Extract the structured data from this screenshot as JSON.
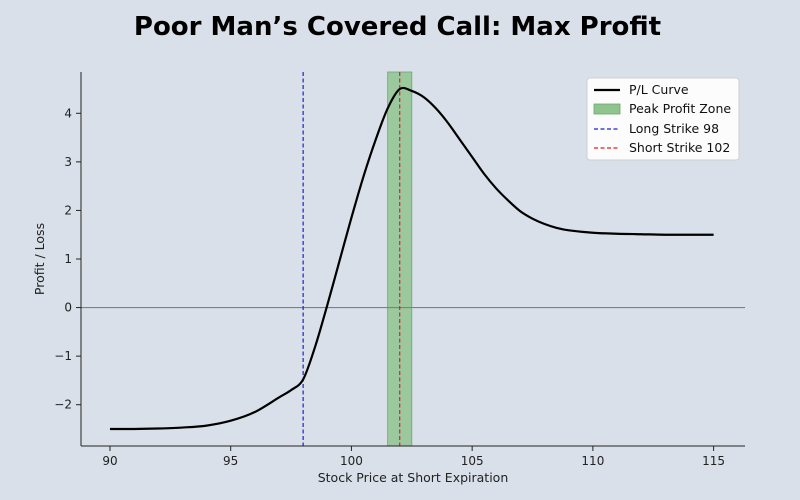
{
  "chart_data": {
    "type": "line",
    "title": "Poor Man’s Covered Call: Max Profit",
    "xlabel": "Stock Price at Short Expiration",
    "ylabel": "Profit / Loss",
    "xlim": [
      88.8,
      116.3
    ],
    "ylim": [
      -2.85,
      4.85
    ],
    "xticks": [
      90,
      95,
      100,
      105,
      110,
      115
    ],
    "yticks": [
      -2,
      -1,
      0,
      1,
      2,
      3,
      4
    ],
    "ytick_labels": [
      "−2",
      "−1",
      "0",
      "1",
      "2",
      "3",
      "4"
    ],
    "grid": false,
    "legend_position": "upper right",
    "series": [
      {
        "name": "P/L Curve",
        "color": "#000000",
        "x": [
          90,
          91,
          92,
          93,
          94,
          95,
          96,
          97,
          97.5,
          98,
          98.5,
          99,
          99.5,
          100,
          100.5,
          101,
          101.5,
          102,
          102.5,
          103,
          103.5,
          104,
          104.5,
          105,
          105.5,
          106,
          106.5,
          107,
          107.5,
          108,
          108.5,
          109,
          110,
          111,
          112,
          113,
          114,
          115
        ],
        "y": [
          -2.5,
          -2.5,
          -2.49,
          -2.47,
          -2.43,
          -2.33,
          -2.15,
          -1.85,
          -1.7,
          -1.48,
          -0.8,
          0.05,
          0.95,
          1.85,
          2.7,
          3.45,
          4.1,
          4.5,
          4.46,
          4.33,
          4.1,
          3.8,
          3.45,
          3.1,
          2.75,
          2.45,
          2.2,
          1.98,
          1.83,
          1.72,
          1.64,
          1.59,
          1.54,
          1.52,
          1.51,
          1.5,
          1.5,
          1.5
        ]
      }
    ],
    "peak_zone": {
      "label": "Peak Profit Zone",
      "x_range": [
        101.5,
        102.5
      ],
      "color": "#8fc48f"
    },
    "vlines": [
      {
        "label": "Long Strike 98",
        "x": 98,
        "color": "#1f1fd0"
      },
      {
        "label": "Short Strike 102",
        "x": 102,
        "color": "#e02020"
      }
    ],
    "hline": {
      "y": 0,
      "color": "#808080"
    }
  }
}
